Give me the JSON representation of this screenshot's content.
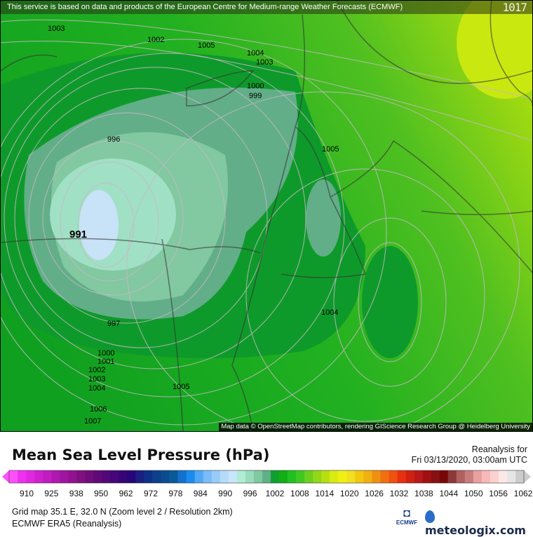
{
  "banner": {
    "text": "This service is based on data and products of the European Centre for Medium-range Weather Forecasts (ECMWF)",
    "corner_value": "1017"
  },
  "map": {
    "isobar_labels": [
      "1003",
      "1002",
      "1005",
      "1004",
      "1003",
      "1000",
      "999",
      "996",
      "1005",
      "991",
      "997",
      "1004",
      "1000",
      "1001",
      "1002",
      "1003",
      "1004",
      "1005",
      "1006",
      "1007"
    ],
    "attribution": "Map data © OpenStreetMap contributors, rendering GIScience Research Group @ Heidelberg University"
  },
  "legend": {
    "title": "Mean Sea Level Pressure (hPa)",
    "reanalysis_label": "Reanalysis for",
    "datetime": "Fri 03/13/2020, 03:00am UTC",
    "tick_labels": [
      "910",
      "925",
      "938",
      "950",
      "962",
      "972",
      "978",
      "984",
      "990",
      "996",
      "1002",
      "1008",
      "1014",
      "1020",
      "1026",
      "1032",
      "1038",
      "1044",
      "1050",
      "1056",
      "1062"
    ],
    "colors": [
      "#ff50ff",
      "#f030f0",
      "#e028e0",
      "#d020d0",
      "#c01cc0",
      "#b018b0",
      "#a015a0",
      "#901290",
      "#801080",
      "#700d78",
      "#600a78",
      "#520878",
      "#440678",
      "#360575",
      "#28057a",
      "#1a2080",
      "#0f3088",
      "#0c3f8c",
      "#0a4c90",
      "#0a5a98",
      "#1470d0",
      "#1a8cf0",
      "#50a8f5",
      "#78bcf8",
      "#98ccf8",
      "#b4dcfa",
      "#c8e6fa",
      "#b0ecd4",
      "#98dcbc",
      "#80c8a0",
      "#60b088",
      "#10a030",
      "#10b012",
      "#20c020",
      "#40c820",
      "#6ccf20",
      "#90d818",
      "#b8e010",
      "#d8ec10",
      "#f0f010",
      "#f0e020",
      "#f0c810",
      "#f0b010",
      "#f09010",
      "#f07010",
      "#f05010",
      "#e83010",
      "#d02010",
      "#b81818",
      "#a01010",
      "#881010",
      "#780808",
      "#8c3838",
      "#b06060",
      "#c87c7c",
      "#e8a0a0",
      "#f8b8b8",
      "#fcd0d0",
      "#fde8e8",
      "#e6e6e6",
      "#cccccc"
    ],
    "grid_info": "Grid map 35.1 E, 32.0 N (Zoom level 2 / Resolution 2km)",
    "model": "ECMWF ERA5 (Reanalysis)",
    "ecmwf_logo": "ECMWF",
    "brand": "meteologix.com"
  }
}
